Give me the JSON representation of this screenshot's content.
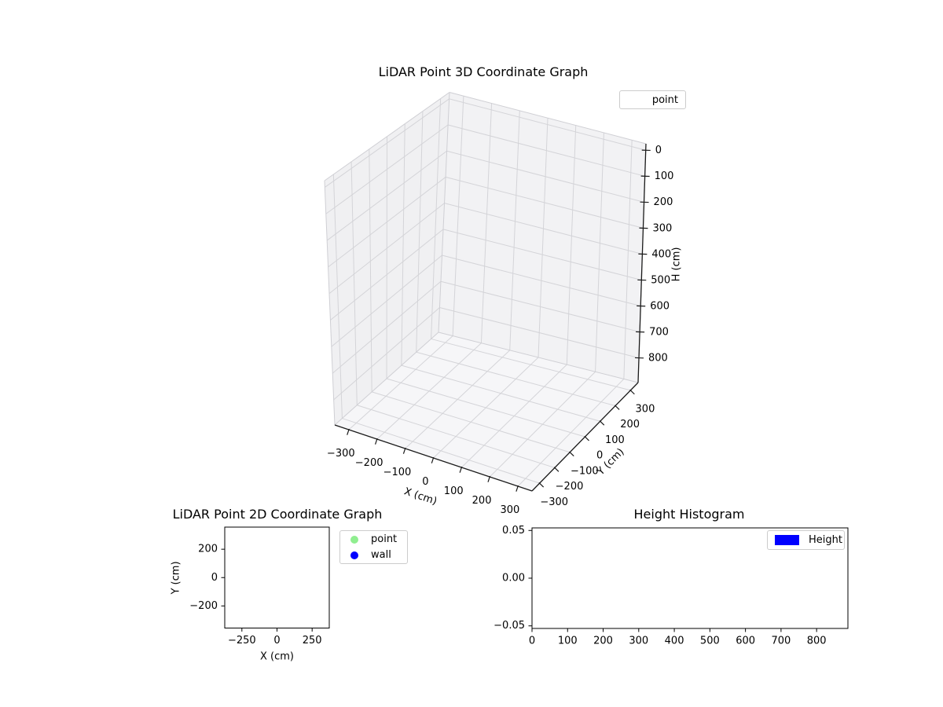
{
  "figure": {
    "background": "#ffffff"
  },
  "chart_data": [
    {
      "id": "lidar-3d",
      "type": "scatter3d",
      "title": "LiDAR Point 3D Coordinate Graph",
      "xlabel": "X (cm)",
      "ylabel": "Y (cm)",
      "zlabel": "H (cm)",
      "xlim": [
        -350,
        350
      ],
      "ylim": [
        -350,
        350
      ],
      "zlim_top_to_bottom": [
        -25,
        895
      ],
      "zaxis_inverted": true,
      "xticks": [
        -300,
        -200,
        -100,
        0,
        100,
        200,
        300
      ],
      "xtick_labels": [
        "−300",
        "−200",
        "−100",
        "0",
        "100",
        "200",
        "300"
      ],
      "yticks": [
        -300,
        -200,
        -100,
        0,
        100,
        200,
        300
      ],
      "ytick_labels": [
        "−300",
        "−200",
        "−100",
        "0",
        "100",
        "200",
        "300"
      ],
      "zticks": [
        0,
        100,
        200,
        300,
        400,
        500,
        600,
        700,
        800
      ],
      "ztick_labels": [
        "0",
        "100",
        "200",
        "300",
        "400",
        "500",
        "600",
        "700",
        "800"
      ],
      "grid": true,
      "legend": {
        "position": "upper right",
        "items": [
          {
            "label": "point",
            "marker": "none"
          }
        ]
      },
      "series": [
        {
          "name": "point",
          "points": []
        }
      ]
    },
    {
      "id": "lidar-2d",
      "type": "scatter",
      "title": "LiDAR Point 2D Coordinate Graph",
      "xlabel": "X (cm)",
      "ylabel": "Y (cm)",
      "xlim": [
        -372,
        372
      ],
      "ylim": [
        -356,
        356
      ],
      "xticks": [
        -250,
        0,
        250
      ],
      "xtick_labels": [
        "−250",
        "0",
        "250"
      ],
      "yticks": [
        200,
        0,
        -200
      ],
      "ytick_labels": [
        "200",
        "0",
        "−200"
      ],
      "grid": false,
      "legend": {
        "position": "outside upper right",
        "items": [
          {
            "label": "point",
            "color": "#90ee90"
          },
          {
            "label": "wall",
            "color": "#0000ff"
          }
        ]
      },
      "series": [
        {
          "name": "point",
          "points": []
        },
        {
          "name": "wall",
          "points": []
        }
      ]
    },
    {
      "id": "height-histogram",
      "type": "bar",
      "title": "Height Histogram",
      "xlabel": "",
      "ylabel": "",
      "xlim": [
        0,
        888
      ],
      "ylim": [
        -0.0527,
        0.0527
      ],
      "xticks": [
        0,
        100,
        200,
        300,
        400,
        500,
        600,
        700,
        800
      ],
      "xtick_labels": [
        "0",
        "100",
        "200",
        "300",
        "400",
        "500",
        "600",
        "700",
        "800"
      ],
      "yticks": [
        0.05,
        0.0,
        -0.05
      ],
      "ytick_labels": [
        "0.05",
        "0.00",
        "−0.05"
      ],
      "grid": false,
      "legend": {
        "position": "upper right",
        "items": [
          {
            "label": "Height",
            "color": "#0000ff"
          }
        ]
      },
      "values": []
    }
  ],
  "colors": {
    "pane_left": "#f0f0f2",
    "pane_right": "#f2f2f4",
    "pane_floor": "#f6f6f8",
    "grid_line": "#d4d4d8",
    "box_edge": "#cfcfd4",
    "axis_line": "#1a1a1a"
  }
}
